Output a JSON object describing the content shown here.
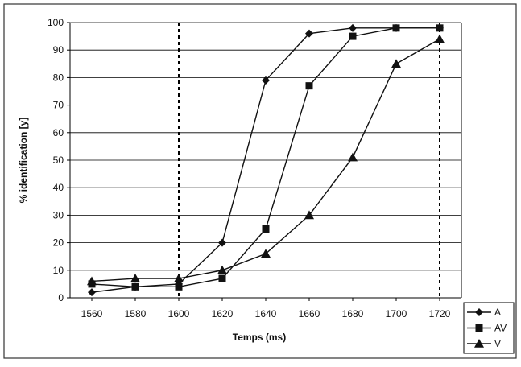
{
  "chart_data": {
    "type": "line",
    "xlabel": "Temps (ms)",
    "ylabel": "% identification [y]",
    "x": [
      1560,
      1580,
      1600,
      1620,
      1640,
      1660,
      1680,
      1700,
      1720
    ],
    "xlim": [
      1550,
      1730
    ],
    "ylim": [
      0,
      100
    ],
    "y_ticks": [
      0,
      10,
      20,
      30,
      40,
      50,
      60,
      70,
      80,
      90,
      100
    ],
    "grid": "horizontal",
    "legend_position": "bottom-right",
    "reference_lines_x": [
      1600,
      1720
    ],
    "series": [
      {
        "name": "A",
        "marker": "diamond",
        "values": [
          2,
          4,
          5,
          20,
          79,
          96,
          98,
          98,
          98
        ]
      },
      {
        "name": "AV",
        "marker": "square",
        "values": [
          5,
          4,
          4,
          7,
          25,
          77,
          95,
          98,
          98
        ]
      },
      {
        "name": "V",
        "marker": "triangle",
        "values": [
          6,
          7,
          7,
          10,
          16,
          30,
          51,
          85,
          94
        ]
      }
    ],
    "colors": {
      "line": "#111111",
      "grid": "#000000",
      "frame": "#333333"
    }
  }
}
